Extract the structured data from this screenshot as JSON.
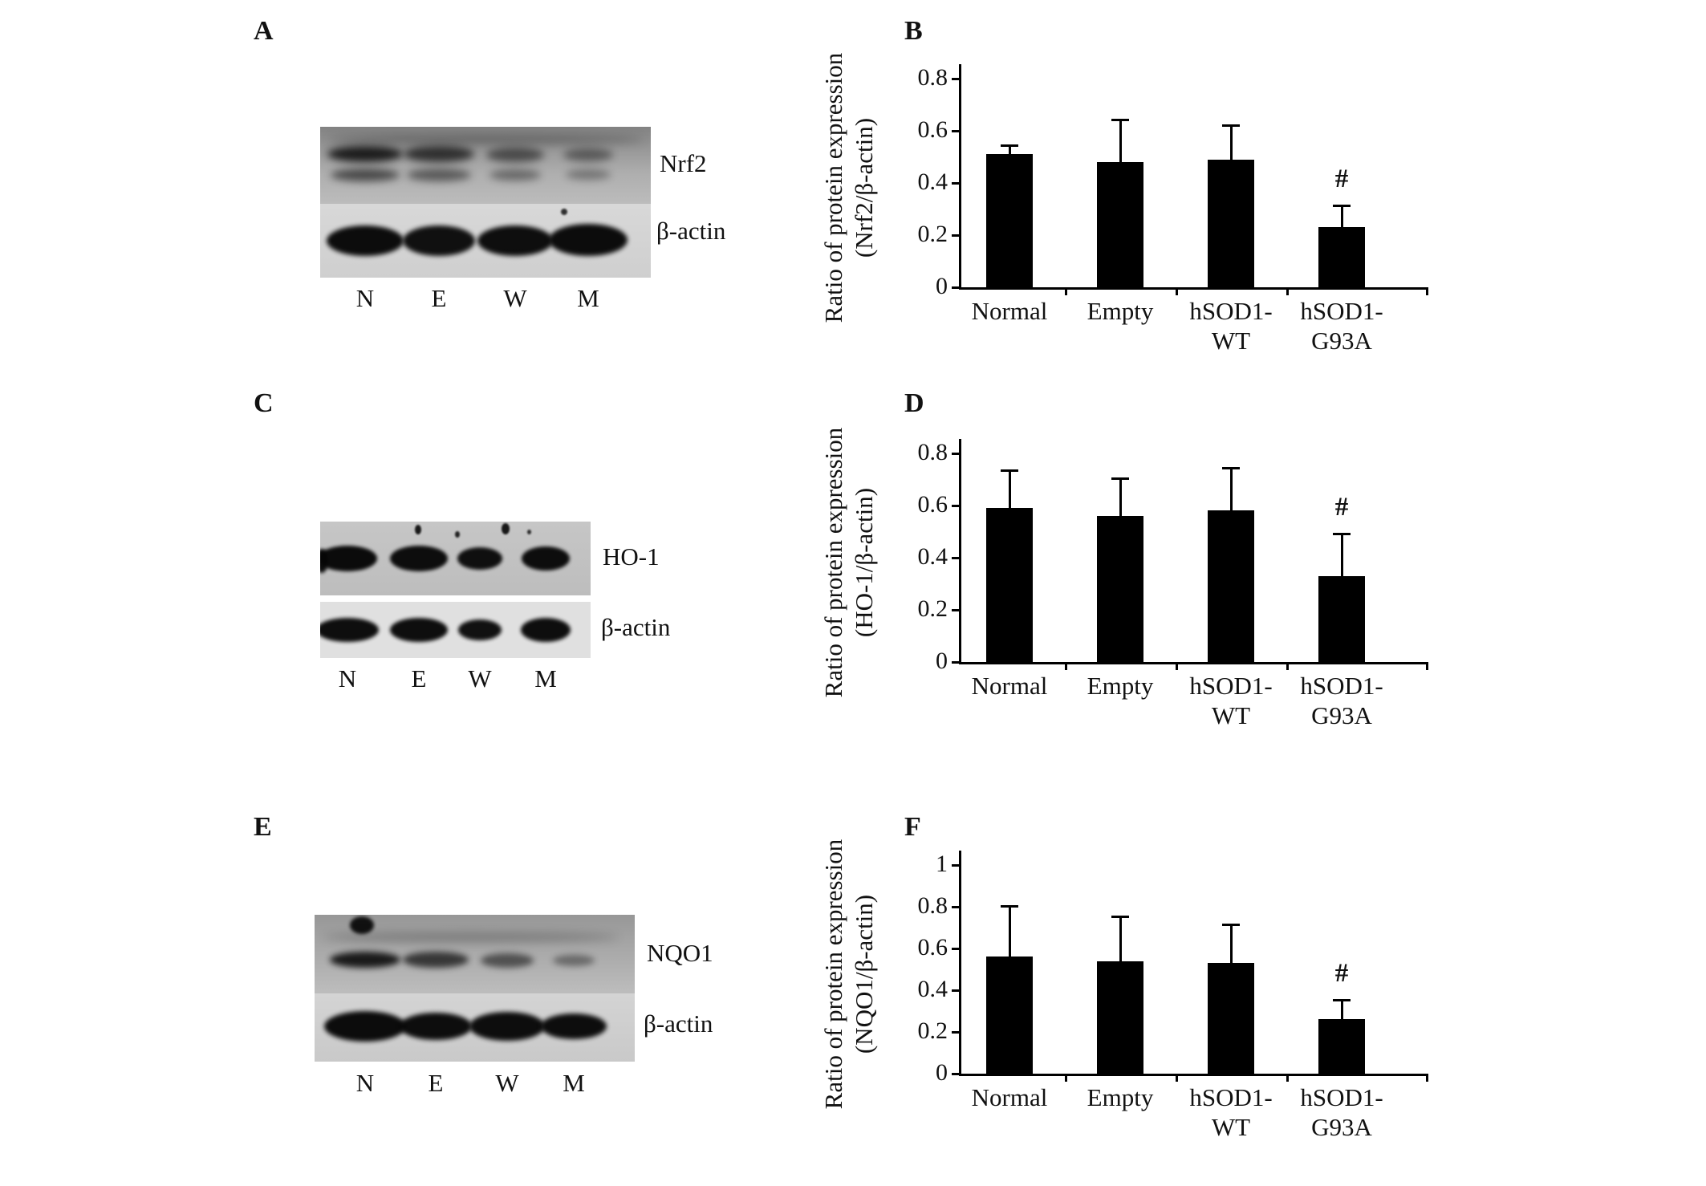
{
  "figure": {
    "panels": [
      "A",
      "B",
      "C",
      "D",
      "E",
      "F"
    ]
  },
  "blots": [
    {
      "panel": "A",
      "rows": [
        {
          "protein": "Nrf2"
        },
        {
          "protein": "β-actin"
        }
      ],
      "lanes": [
        "N",
        "E",
        "W",
        "M"
      ]
    },
    {
      "panel": "C",
      "rows": [
        {
          "protein": "HO-1"
        },
        {
          "protein": "β-actin"
        }
      ],
      "lanes": [
        "N",
        "E",
        "W",
        "M"
      ]
    },
    {
      "panel": "E",
      "rows": [
        {
          "protein": "NQO1"
        },
        {
          "protein": "β-actin"
        }
      ],
      "lanes": [
        "N",
        "E",
        "W",
        "M"
      ]
    }
  ],
  "chart_data": [
    {
      "panel": "B",
      "type": "bar",
      "ylabel": [
        "Ratio of protein expression",
        "(Nrf2/β-actin)"
      ],
      "categories": [
        [
          "Normal"
        ],
        [
          "Empty"
        ],
        [
          "hSOD1-",
          "WT"
        ],
        [
          "hSOD1-",
          "G93A"
        ]
      ],
      "values": [
        0.51,
        0.48,
        0.49,
        0.23
      ],
      "errors": [
        0.03,
        0.16,
        0.13,
        0.08
      ],
      "ylim": [
        0,
        0.8
      ],
      "yticks": [
        "0",
        "0.2",
        "0.4",
        "0.6",
        "0.8"
      ],
      "annotations": [
        {
          "text": "#",
          "index": 3
        }
      ],
      "bar_color": "#000000",
      "grid": false,
      "legend": "none"
    },
    {
      "panel": "D",
      "type": "bar",
      "ylabel": [
        "Ratio of protein expression",
        "(HO-1/β-actin)"
      ],
      "categories": [
        [
          "Normal"
        ],
        [
          "Empty"
        ],
        [
          "hSOD1-",
          "WT"
        ],
        [
          "hSOD1-",
          "G93A"
        ]
      ],
      "values": [
        0.59,
        0.56,
        0.58,
        0.33
      ],
      "errors": [
        0.14,
        0.14,
        0.16,
        0.16
      ],
      "ylim": [
        0,
        0.8
      ],
      "yticks": [
        "0",
        "0.2",
        "0.4",
        "0.6",
        "0.8"
      ],
      "annotations": [
        {
          "text": "#",
          "index": 3
        }
      ],
      "bar_color": "#000000",
      "grid": false,
      "legend": "none"
    },
    {
      "panel": "F",
      "type": "bar",
      "ylabel": [
        "Ratio of protein expression",
        "(NQO1/β-actin)"
      ],
      "categories": [
        [
          "Normal"
        ],
        [
          "Empty"
        ],
        [
          "hSOD1-",
          "WT"
        ],
        [
          "hSOD1-",
          "G93A"
        ]
      ],
      "values": [
        0.56,
        0.54,
        0.53,
        0.26
      ],
      "errors": [
        0.24,
        0.21,
        0.18,
        0.09
      ],
      "ylim": [
        0,
        1.0
      ],
      "yticks": [
        "0",
        "0.2",
        "0.4",
        "0.6",
        "0.8",
        "1"
      ],
      "annotations": [
        {
          "text": "#",
          "index": 3
        }
      ],
      "bar_color": "#000000",
      "grid": false,
      "legend": "none"
    }
  ]
}
